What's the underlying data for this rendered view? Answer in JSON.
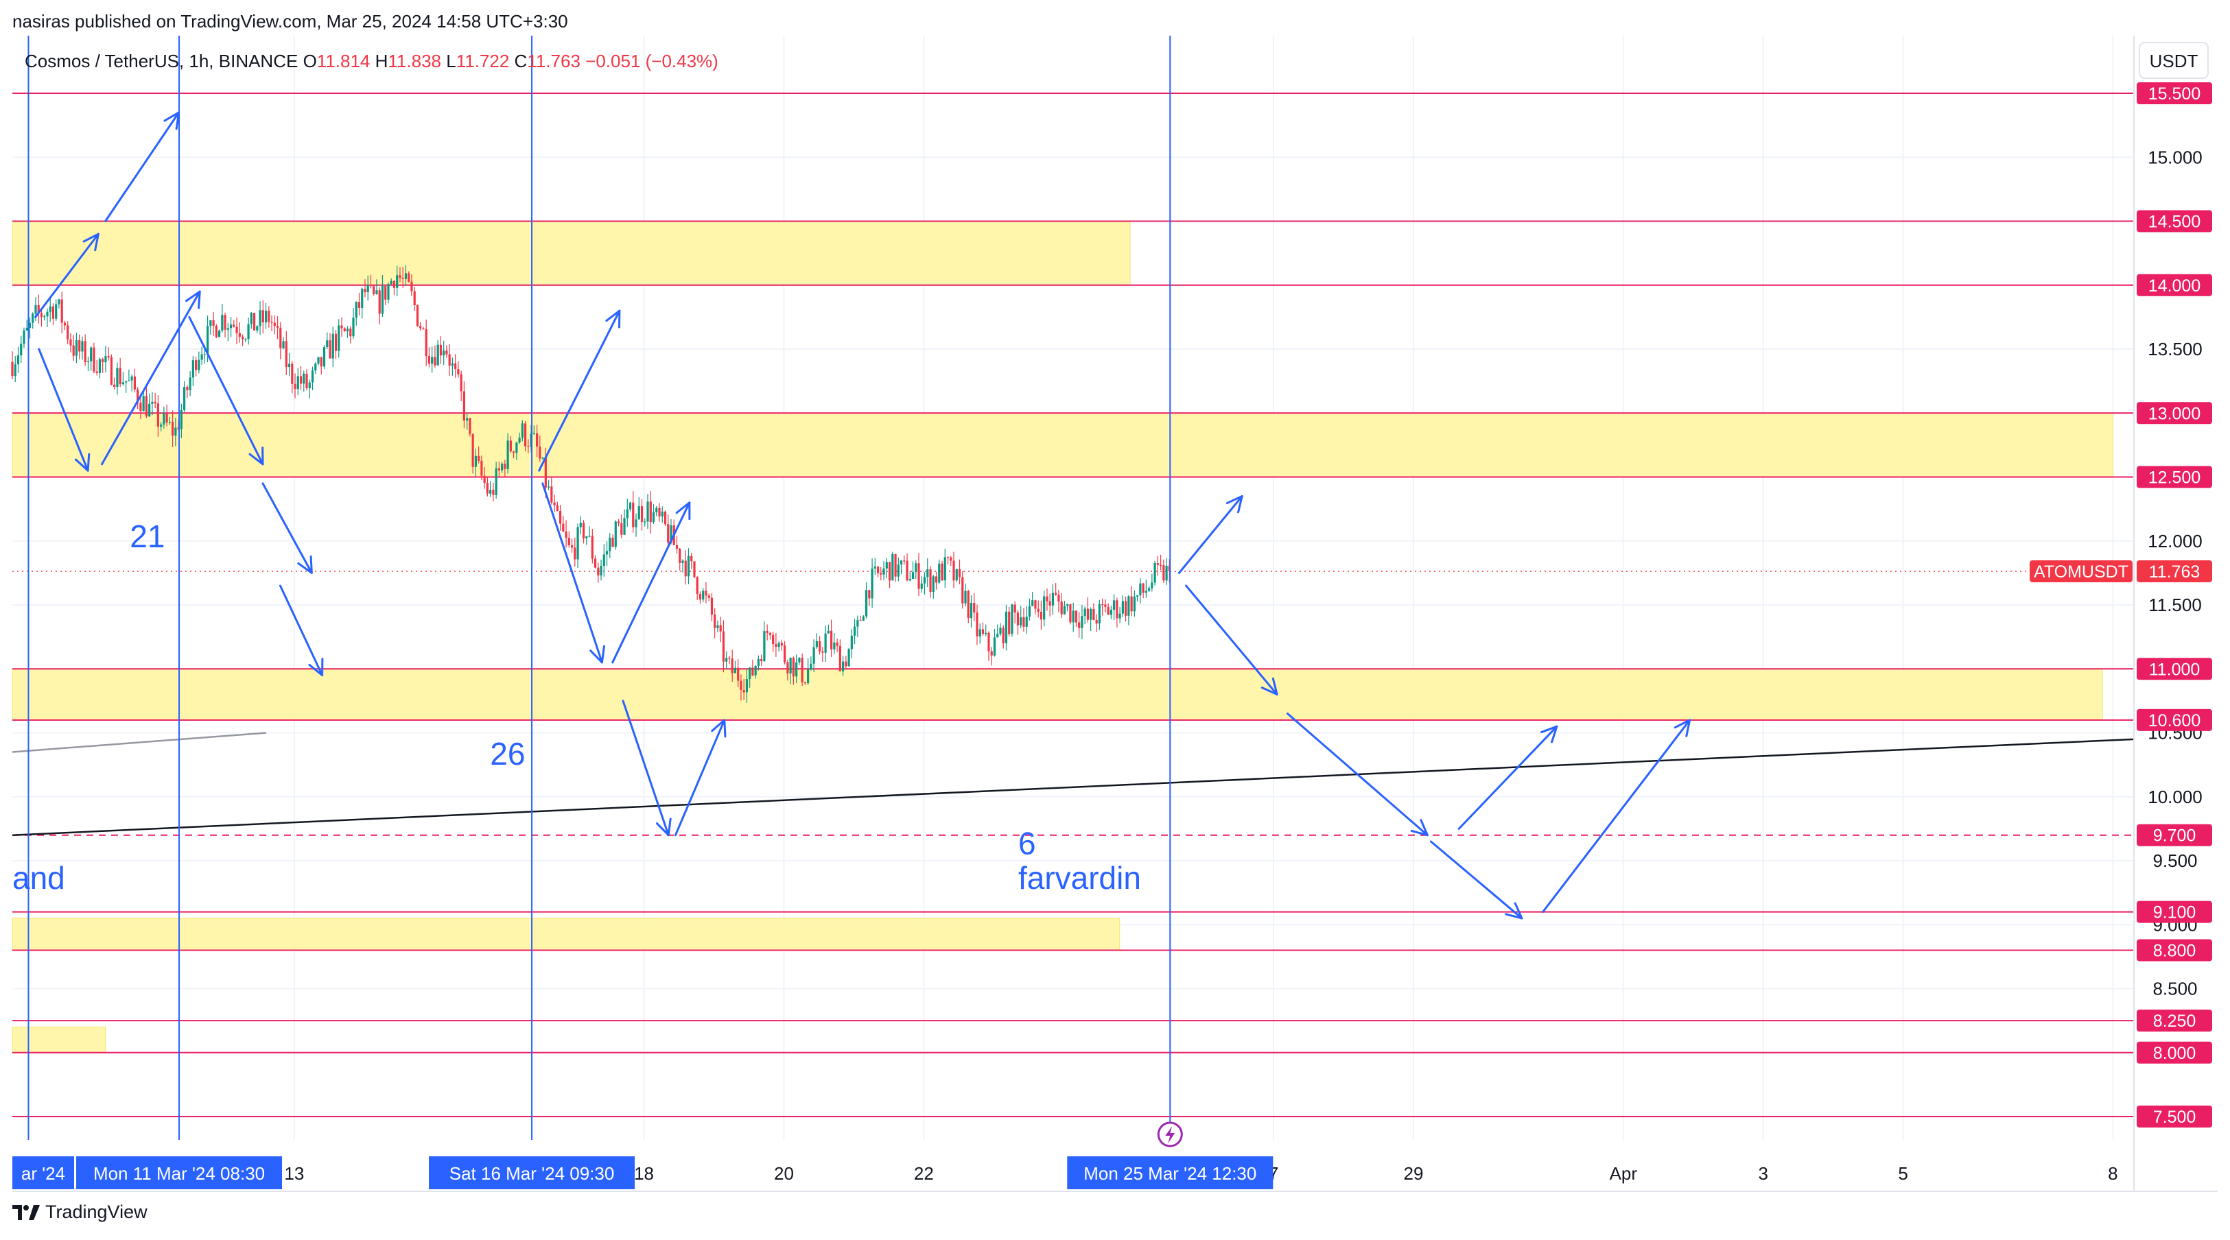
{
  "publication": "nasiras published on TradingView.com, Mar 25, 2024 14:58 UTC+3:30",
  "brand": "TradingView",
  "chart_data": {
    "type": "candlestick",
    "symbol_line": {
      "name": "Cosmos / TetherUS, 1h, BINANCE",
      "o_label": "O",
      "o": "11.814",
      "h_label": "H",
      "h": "11.838",
      "l_label": "L",
      "l": "11.722",
      "c_label": "C",
      "c": "11.763",
      "change": "−0.051 (−0.43%)"
    },
    "currency": "USDT",
    "ticker": "ATOMUSDT",
    "last_price": 11.763,
    "last_price_label": "11.763",
    "y_range": [
      7.2,
      15.8
    ],
    "y_ticks": [
      7.5,
      8.0,
      8.5,
      9.0,
      9.5,
      10.0,
      10.5,
      11.0,
      11.5,
      12.0,
      12.5,
      13.0,
      13.5,
      14.0,
      14.5,
      15.0,
      15.5
    ],
    "y_tick_labels": [
      "7.500",
      "8.000",
      "8.500",
      "9.000",
      "9.500",
      "10.000",
      "10.500",
      "11.000",
      "11.500",
      "12.000",
      "12.500",
      "13.000",
      "13.500",
      "14.000",
      "14.500",
      "15.000",
      "15.500"
    ],
    "x_ticks": [
      {
        "day": 13,
        "label": "13"
      },
      {
        "day": 18,
        "label": "18"
      },
      {
        "day": 20,
        "label": "20"
      },
      {
        "day": 22,
        "label": "22"
      },
      {
        "day": 27,
        "label": "7"
      },
      {
        "day": 29,
        "label": "29"
      },
      {
        "day": 32,
        "label": "Apr"
      },
      {
        "day": 34,
        "label": "3"
      },
      {
        "day": 36,
        "label": "5"
      },
      {
        "day": 39,
        "label": "8"
      }
    ],
    "x_range_day": [
      8.97,
      39.3
    ],
    "crosshair_x_labels": [
      {
        "day": 9.2,
        "label": "ar '24",
        "partial": true
      },
      {
        "day": 11.354,
        "label": "Mon 11 Mar '24   08:30"
      },
      {
        "day": 16.396,
        "label": "Sat 16 Mar '24   09:30"
      },
      {
        "day": 25.521,
        "label": "Mon 25 Mar '24   12:30"
      }
    ],
    "horizontal_levels": [
      {
        "price": 15.5,
        "label": "15.500"
      },
      {
        "price": 14.5,
        "label": "14.500"
      },
      {
        "price": 14.0,
        "label": "14.000"
      },
      {
        "price": 13.0,
        "label": "13.000"
      },
      {
        "price": 12.5,
        "label": "12.500"
      },
      {
        "price": 11.0,
        "label": "11.000"
      },
      {
        "price": 10.6,
        "label": "10.600"
      },
      {
        "price": 9.1,
        "label": "9.100"
      },
      {
        "price": 8.8,
        "label": "8.800"
      },
      {
        "price": 8.25,
        "label": "8.250"
      },
      {
        "price": 8.0,
        "label": "8.000"
      },
      {
        "price": 7.5,
        "label": "7.500"
      }
    ],
    "dashed_level": {
      "price": 9.7,
      "label": "9.700"
    },
    "zones": [
      {
        "top": 14.5,
        "bottom": 14.0,
        "end_day": 24.95
      },
      {
        "top": 13.0,
        "bottom": 12.5,
        "end_day": 39.0
      },
      {
        "top": 11.0,
        "bottom": 10.6,
        "end_day": 38.85
      },
      {
        "top": 9.05,
        "bottom": 8.8,
        "end_day": 24.8
      },
      {
        "top": 8.2,
        "bottom": 8.0,
        "end_day": 10.3
      }
    ],
    "trendlines": [
      {
        "from": [
          8.97,
          9.7
        ],
        "to": [
          39.3,
          10.45
        ],
        "color": "#131722"
      },
      {
        "from": [
          8.97,
          10.35
        ],
        "to": [
          12.6,
          10.5
        ],
        "color": "#9598a1"
      }
    ],
    "annotations": [
      {
        "text": "21",
        "day": 10.65,
        "price": 11.95
      },
      {
        "text": "26",
        "day": 15.8,
        "price": 10.25
      },
      {
        "text": "6",
        "day": 23.35,
        "price": 9.55
      },
      {
        "text": "farvardin",
        "day": 23.35,
        "price": 9.28
      },
      {
        "text": "and",
        "day": 8.97,
        "price": 9.28
      }
    ],
    "projection_arrows": [
      [
        [
          9.3,
          13.75
        ],
        [
          10.2,
          14.4
        ]
      ],
      [
        [
          10.3,
          14.5
        ],
        [
          11.35,
          15.35
        ]
      ],
      [
        [
          9.35,
          13.5
        ],
        [
          10.05,
          12.55
        ]
      ],
      [
        [
          10.25,
          12.6
        ],
        [
          11.65,
          13.95
        ]
      ],
      [
        [
          11.5,
          13.75
        ],
        [
          12.55,
          12.6
        ]
      ],
      [
        [
          12.55,
          12.45
        ],
        [
          13.25,
          11.75
        ]
      ],
      [
        [
          12.8,
          11.65
        ],
        [
          13.4,
          10.95
        ]
      ],
      [
        [
          16.5,
          12.55
        ],
        [
          17.65,
          13.8
        ]
      ],
      [
        [
          16.55,
          12.45
        ],
        [
          17.4,
          11.05
        ]
      ],
      [
        [
          17.55,
          11.05
        ],
        [
          18.65,
          12.3
        ]
      ],
      [
        [
          17.7,
          10.75
        ],
        [
          18.35,
          9.7
        ]
      ],
      [
        [
          18.45,
          9.7
        ],
        [
          19.15,
          10.6
        ]
      ],
      [
        [
          25.65,
          11.75
        ],
        [
          26.55,
          12.35
        ]
      ],
      [
        [
          25.75,
          11.65
        ],
        [
          27.05,
          10.8
        ]
      ],
      [
        [
          27.2,
          10.65
        ],
        [
          29.2,
          9.7
        ]
      ],
      [
        [
          29.65,
          9.75
        ],
        [
          31.05,
          10.55
        ]
      ],
      [
        [
          29.25,
          9.65
        ],
        [
          30.55,
          9.05
        ]
      ],
      [
        [
          30.85,
          9.1
        ],
        [
          32.95,
          10.6
        ]
      ]
    ],
    "price_path": [
      [
        8.97,
        13.4
      ],
      [
        9.3,
        13.75
      ],
      [
        9.6,
        13.85
      ],
      [
        9.85,
        13.5
      ],
      [
        10.2,
        13.4
      ],
      [
        10.6,
        13.25
      ],
      [
        11.05,
        12.95
      ],
      [
        11.3,
        12.85
      ],
      [
        11.6,
        13.45
      ],
      [
        11.95,
        13.75
      ],
      [
        12.3,
        13.65
      ],
      [
        12.65,
        13.75
      ],
      [
        12.95,
        13.3
      ],
      [
        13.2,
        13.2
      ],
      [
        13.55,
        13.55
      ],
      [
        13.8,
        13.65
      ],
      [
        14.0,
        13.95
      ],
      [
        14.2,
        13.85
      ],
      [
        14.45,
        14.1
      ],
      [
        14.65,
        13.95
      ],
      [
        14.95,
        13.45
      ],
      [
        15.15,
        13.55
      ],
      [
        15.4,
        13.1
      ],
      [
        15.55,
        12.65
      ],
      [
        15.8,
        12.35
      ],
      [
        16.05,
        12.7
      ],
      [
        16.25,
        12.85
      ],
      [
        16.45,
        12.75
      ],
      [
        16.6,
        12.45
      ],
      [
        16.75,
        12.15
      ],
      [
        16.95,
        11.9
      ],
      [
        17.15,
        12.1
      ],
      [
        17.35,
        11.75
      ],
      [
        17.55,
        12.05
      ],
      [
        17.8,
        12.2
      ],
      [
        18.05,
        12.25
      ],
      [
        18.3,
        12.1
      ],
      [
        18.5,
        11.9
      ],
      [
        18.7,
        11.75
      ],
      [
        18.95,
        11.45
      ],
      [
        19.2,
        11.0
      ],
      [
        19.5,
        10.9
      ],
      [
        19.8,
        11.35
      ],
      [
        20.0,
        11.1
      ],
      [
        20.3,
        10.95
      ],
      [
        20.6,
        11.25
      ],
      [
        20.85,
        11.05
      ],
      [
        21.05,
        11.3
      ],
      [
        21.2,
        11.65
      ],
      [
        21.5,
        11.8
      ],
      [
        21.8,
        11.75
      ],
      [
        22.1,
        11.7
      ],
      [
        22.35,
        11.8
      ],
      [
        22.6,
        11.55
      ],
      [
        22.75,
        11.3
      ],
      [
        22.95,
        11.15
      ],
      [
        23.25,
        11.4
      ],
      [
        23.55,
        11.45
      ],
      [
        23.85,
        11.55
      ],
      [
        24.1,
        11.45
      ],
      [
        24.35,
        11.38
      ],
      [
        24.6,
        11.45
      ],
      [
        24.9,
        11.5
      ],
      [
        25.15,
        11.6
      ],
      [
        25.3,
        11.72
      ],
      [
        25.521,
        11.763
      ]
    ]
  }
}
